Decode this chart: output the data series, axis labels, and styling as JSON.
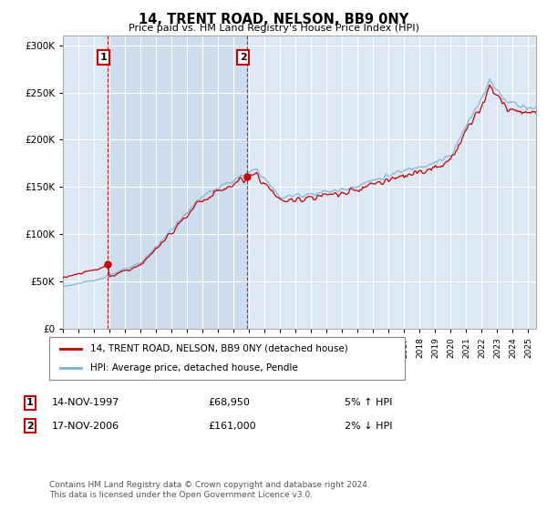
{
  "title": "14, TRENT ROAD, NELSON, BB9 0NY",
  "subtitle": "Price paid vs. HM Land Registry's House Price Index (HPI)",
  "legend_line1": "14, TRENT ROAD, NELSON, BB9 0NY (detached house)",
  "legend_line2": "HPI: Average price, detached house, Pendle",
  "annotation1_label": "1",
  "annotation1_date": "14-NOV-1997",
  "annotation1_price": "£68,950",
  "annotation1_hpi": "5% ↑ HPI",
  "annotation1_year": 1997.875,
  "annotation1_value": 68950,
  "annotation2_label": "2",
  "annotation2_date": "17-NOV-2006",
  "annotation2_price": "£161,000",
  "annotation2_hpi": "2% ↓ HPI",
  "annotation2_year": 2006.875,
  "annotation2_value": 161000,
  "footer": "Contains HM Land Registry data © Crown copyright and database right 2024.\nThis data is licensed under the Open Government Licence v3.0.",
  "red_color": "#cc0000",
  "blue_color": "#7ab0d4",
  "background_chart": "#dce9f5",
  "background_fig": "#ffffff",
  "grid_color": "#ffffff",
  "vline_color": "#cc0000",
  "annotation_box_color": "#cc0000",
  "shade_color": "#c8d8ea",
  "ylim": [
    0,
    310000
  ],
  "yticks": [
    0,
    50000,
    100000,
    150000,
    200000,
    250000,
    300000
  ],
  "xlim_start": 1995.0,
  "xlim_end": 2025.5
}
